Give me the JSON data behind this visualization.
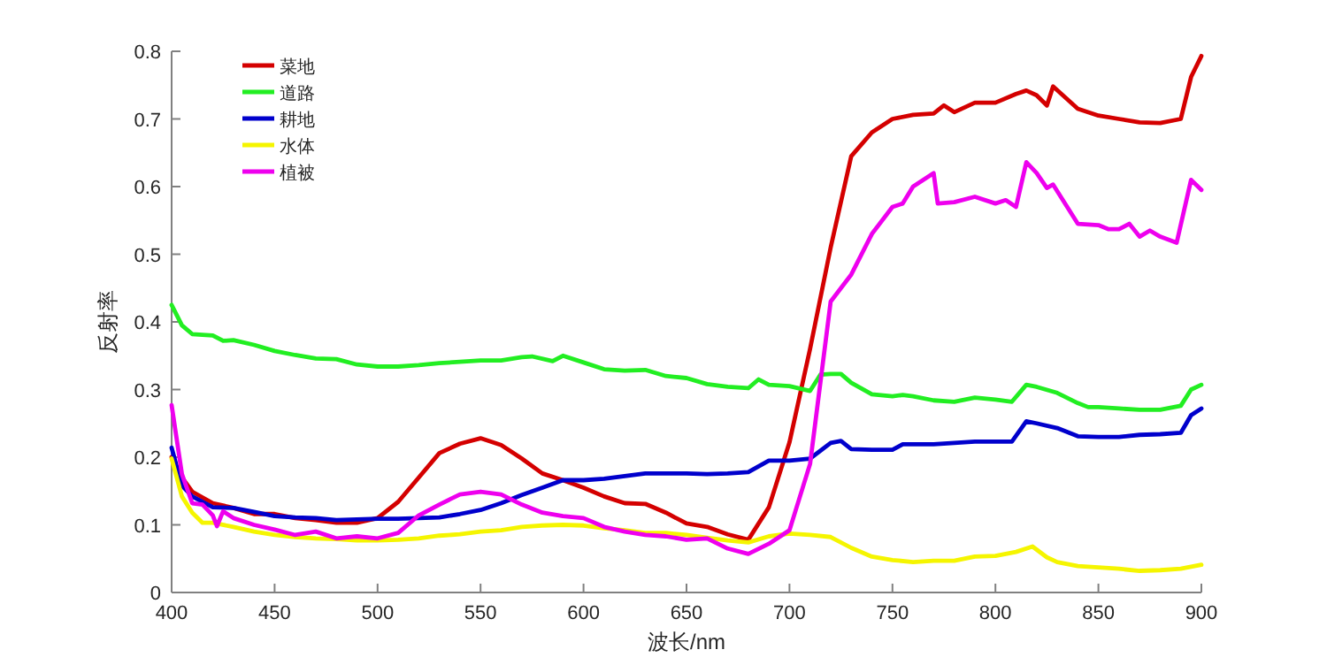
{
  "chart_data": {
    "type": "line",
    "xlabel": "波长/nm",
    "ylabel": "反射率",
    "xlim": [
      400,
      900
    ],
    "ylim": [
      0,
      0.8
    ],
    "xticks": [
      400,
      450,
      500,
      550,
      600,
      650,
      700,
      750,
      800,
      850,
      900
    ],
    "yticks": [
      0,
      0.1,
      0.2,
      0.3,
      0.4,
      0.5,
      0.6,
      0.7,
      0.8
    ],
    "legend": "top left",
    "series": [
      {
        "name": "菜地",
        "color": "#d40000",
        "x": [
          400,
          405,
          410,
          420,
          430,
          440,
          450,
          460,
          470,
          480,
          490,
          500,
          510,
          520,
          530,
          540,
          550,
          560,
          570,
          580,
          590,
          600,
          610,
          620,
          630,
          640,
          650,
          660,
          670,
          680,
          690,
          700,
          710,
          720,
          730,
          740,
          750,
          760,
          770,
          775,
          780,
          790,
          800,
          810,
          815,
          820,
          825,
          828,
          840,
          850,
          860,
          870,
          880,
          890,
          895,
          900
        ],
        "values": [
          0.2,
          0.17,
          0.149,
          0.132,
          0.125,
          0.116,
          0.116,
          0.11,
          0.107,
          0.103,
          0.103,
          0.11,
          0.134,
          0.17,
          0.206,
          0.22,
          0.228,
          0.218,
          0.198,
          0.176,
          0.166,
          0.155,
          0.142,
          0.132,
          0.131,
          0.118,
          0.102,
          0.097,
          0.086,
          0.078,
          0.126,
          0.222,
          0.36,
          0.51,
          0.645,
          0.68,
          0.7,
          0.706,
          0.708,
          0.72,
          0.71,
          0.724,
          0.724,
          0.737,
          0.742,
          0.735,
          0.72,
          0.748,
          0.715,
          0.705,
          0.7,
          0.695,
          0.694,
          0.7,
          0.762,
          0.793
        ]
      },
      {
        "name": "道路",
        "color": "#22ee22",
        "x": [
          400,
          405,
          410,
          420,
          425,
          430,
          440,
          450,
          460,
          470,
          480,
          490,
          500,
          510,
          520,
          530,
          540,
          550,
          560,
          570,
          575,
          585,
          590,
          600,
          610,
          620,
          630,
          640,
          650,
          660,
          670,
          680,
          685,
          690,
          700,
          710,
          715,
          720,
          725,
          730,
          740,
          750,
          755,
          760,
          770,
          780,
          790,
          800,
          808,
          815,
          820,
          830,
          840,
          845,
          850,
          860,
          870,
          880,
          890,
          895,
          900
        ],
        "values": [
          0.425,
          0.395,
          0.382,
          0.38,
          0.372,
          0.373,
          0.366,
          0.357,
          0.351,
          0.346,
          0.345,
          0.337,
          0.334,
          0.334,
          0.336,
          0.339,
          0.341,
          0.343,
          0.343,
          0.348,
          0.349,
          0.342,
          0.35,
          0.34,
          0.33,
          0.328,
          0.329,
          0.32,
          0.317,
          0.308,
          0.304,
          0.302,
          0.315,
          0.307,
          0.305,
          0.298,
          0.322,
          0.323,
          0.323,
          0.31,
          0.293,
          0.29,
          0.292,
          0.29,
          0.284,
          0.282,
          0.288,
          0.285,
          0.282,
          0.307,
          0.304,
          0.295,
          0.28,
          0.274,
          0.274,
          0.272,
          0.27,
          0.27,
          0.276,
          0.3,
          0.307
        ]
      },
      {
        "name": "耕地",
        "color": "#0000cc",
        "x": [
          400,
          405,
          410,
          420,
          430,
          440,
          450,
          460,
          470,
          480,
          490,
          500,
          510,
          520,
          530,
          540,
          550,
          560,
          570,
          580,
          590,
          600,
          610,
          620,
          630,
          640,
          650,
          660,
          670,
          680,
          690,
          700,
          710,
          720,
          725,
          730,
          740,
          750,
          755,
          770,
          780,
          790,
          800,
          808,
          815,
          820,
          830,
          840,
          850,
          860,
          870,
          880,
          890,
          895,
          900
        ],
        "values": [
          0.214,
          0.158,
          0.142,
          0.126,
          0.125,
          0.119,
          0.113,
          0.111,
          0.11,
          0.107,
          0.108,
          0.109,
          0.109,
          0.11,
          0.111,
          0.116,
          0.122,
          0.132,
          0.144,
          0.155,
          0.166,
          0.166,
          0.168,
          0.172,
          0.176,
          0.176,
          0.176,
          0.175,
          0.176,
          0.178,
          0.195,
          0.195,
          0.198,
          0.221,
          0.224,
          0.212,
          0.211,
          0.211,
          0.219,
          0.219,
          0.221,
          0.223,
          0.223,
          0.223,
          0.253,
          0.25,
          0.243,
          0.231,
          0.23,
          0.23,
          0.233,
          0.234,
          0.236,
          0.262,
          0.272
        ]
      },
      {
        "name": "水体",
        "color": "#f5f500",
        "x": [
          400,
          405,
          410,
          415,
          420,
          430,
          440,
          450,
          460,
          470,
          480,
          490,
          500,
          510,
          520,
          530,
          540,
          550,
          560,
          570,
          580,
          590,
          600,
          610,
          620,
          630,
          640,
          650,
          660,
          670,
          680,
          690,
          700,
          710,
          720,
          730,
          740,
          750,
          760,
          770,
          780,
          790,
          800,
          810,
          818,
          825,
          830,
          840,
          850,
          860,
          870,
          880,
          890,
          900
        ],
        "values": [
          0.198,
          0.142,
          0.118,
          0.103,
          0.103,
          0.097,
          0.09,
          0.085,
          0.082,
          0.08,
          0.079,
          0.077,
          0.077,
          0.078,
          0.08,
          0.084,
          0.086,
          0.09,
          0.092,
          0.097,
          0.099,
          0.1,
          0.099,
          0.095,
          0.092,
          0.088,
          0.088,
          0.085,
          0.081,
          0.077,
          0.074,
          0.083,
          0.087,
          0.085,
          0.082,
          0.066,
          0.053,
          0.048,
          0.045,
          0.047,
          0.047,
          0.053,
          0.054,
          0.06,
          0.068,
          0.052,
          0.045,
          0.039,
          0.037,
          0.035,
          0.032,
          0.033,
          0.035,
          0.041
        ]
      },
      {
        "name": "植被",
        "color": "#ee00ee",
        "x": [
          400,
          405,
          410,
          415,
          420,
          422,
          425,
          430,
          440,
          450,
          460,
          470,
          480,
          490,
          500,
          510,
          520,
          530,
          540,
          550,
          560,
          570,
          580,
          590,
          600,
          610,
          620,
          630,
          640,
          650,
          660,
          670,
          680,
          690,
          700,
          710,
          720,
          730,
          740,
          750,
          755,
          760,
          770,
          772,
          780,
          790,
          800,
          805,
          810,
          815,
          820,
          825,
          828,
          840,
          850,
          855,
          860,
          865,
          870,
          875,
          880,
          888,
          895,
          900
        ],
        "values": [
          0.277,
          0.175,
          0.132,
          0.13,
          0.114,
          0.098,
          0.12,
          0.11,
          0.1,
          0.093,
          0.085,
          0.09,
          0.08,
          0.083,
          0.08,
          0.088,
          0.114,
          0.13,
          0.145,
          0.149,
          0.145,
          0.13,
          0.118,
          0.113,
          0.11,
          0.097,
          0.09,
          0.085,
          0.083,
          0.078,
          0.08,
          0.065,
          0.057,
          0.072,
          0.092,
          0.19,
          0.43,
          0.47,
          0.53,
          0.57,
          0.575,
          0.6,
          0.62,
          0.575,
          0.577,
          0.585,
          0.575,
          0.58,
          0.57,
          0.636,
          0.62,
          0.598,
          0.603,
          0.545,
          0.543,
          0.537,
          0.537,
          0.545,
          0.526,
          0.535,
          0.526,
          0.517,
          0.61,
          0.595
        ]
      }
    ]
  }
}
